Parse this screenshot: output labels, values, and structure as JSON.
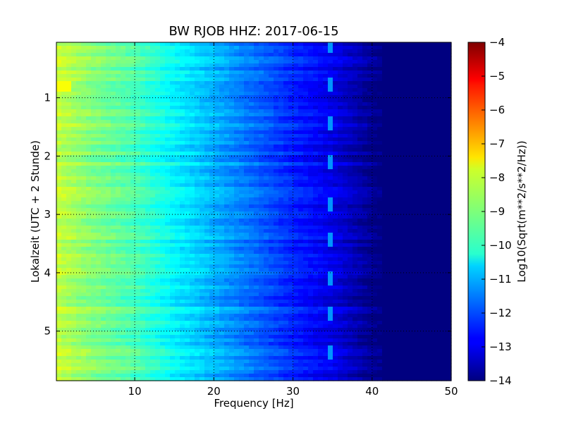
{
  "chart_data": {
    "type": "heatmap",
    "title": "BW RJOB HHZ: 2017-06-15",
    "xlabel": "Frequency [Hz]",
    "ylabel": "Lokalzeit (UTC + 2 Stunde)",
    "xlim": [
      0.1,
      50
    ],
    "ylim": [
      5.85,
      0.05
    ],
    "xticks": [
      10,
      20,
      30,
      40,
      50
    ],
    "yticks": [
      1,
      2,
      3,
      4,
      5
    ],
    "grid": true,
    "grid_style": "dotted",
    "colormap": "jet",
    "colorbar": {
      "label": "Log10(Sqrt(m**2/s**2/Hz))",
      "range": [
        -14,
        -4
      ],
      "ticks": [
        -4,
        -5,
        -6,
        -7,
        -8,
        -9,
        -10,
        -11,
        -12,
        -13,
        -14
      ]
    },
    "profile": {
      "frequency_hz": [
        0.1,
        2,
        5,
        10,
        15,
        20,
        25,
        30,
        35,
        38,
        40,
        41,
        50
      ],
      "log10_amplitude": [
        -8.3,
        -8.6,
        -9.0,
        -9.5,
        -10.3,
        -11.0,
        -11.7,
        -12.4,
        -13.0,
        -13.5,
        -13.9,
        -14.0,
        -14.0
      ]
    },
    "hotspots": [
      {
        "time": 0.8,
        "frequency_hz": 1.0,
        "log10_amplitude": -7.8
      }
    ],
    "narrowband_feature": {
      "frequency_hz": 34.5,
      "log10_amplitude": -11.3,
      "times": [
        0.1,
        0.75,
        1.45,
        2.1,
        2.8,
        3.45,
        4.1,
        4.7,
        5.35
      ]
    }
  }
}
